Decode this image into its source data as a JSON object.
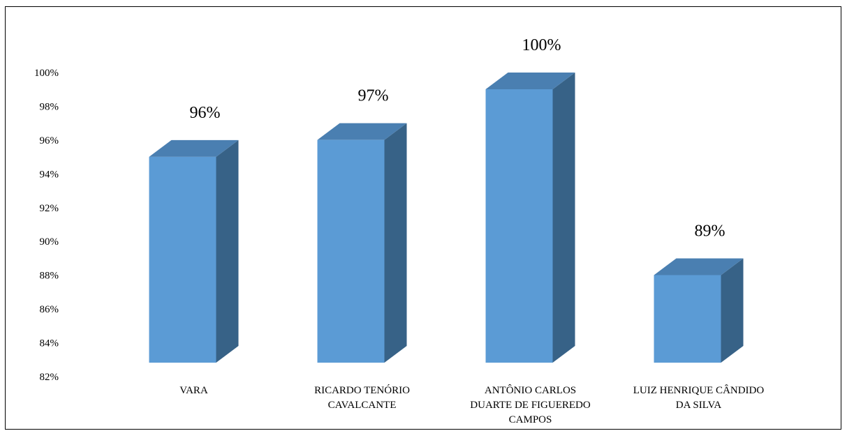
{
  "chart_data": {
    "type": "bar",
    "title": "",
    "xlabel": "",
    "ylabel": "",
    "categories": [
      "VARA",
      "RICARDO TENÓRIO CAVALCANTE",
      "ANTÔNIO CARLOS DUARTE DE FIGUEREDO CAMPOS",
      "LUIZ HENRIQUE CÂNDIDO DA SILVA"
    ],
    "category_lines": [
      [
        "VARA"
      ],
      [
        "RICARDO TENÓRIO",
        "CAVALCANTE"
      ],
      [
        "ANTÔNIO CARLOS",
        "DUARTE DE FIGUEREDO",
        "CAMPOS"
      ],
      [
        "LUIZ HENRIQUE CÂNDIDO",
        "DA SILVA"
      ]
    ],
    "values": [
      96,
      97,
      100,
      89
    ],
    "data_labels": [
      "96%",
      "97%",
      "100%",
      "89%"
    ],
    "ylim": [
      82,
      100
    ],
    "yticks": [
      82,
      84,
      86,
      88,
      90,
      92,
      94,
      96,
      98,
      100
    ],
    "ytick_labels": [
      "82%",
      "84%",
      "86%",
      "88%",
      "90%",
      "92%",
      "94%",
      "96%",
      "98%",
      "100%"
    ],
    "style": "3d-column",
    "grid": false,
    "legend": "none",
    "colors": {
      "front": "#5b9bd5",
      "side": "#376287",
      "top": "#4a7fb1"
    }
  }
}
